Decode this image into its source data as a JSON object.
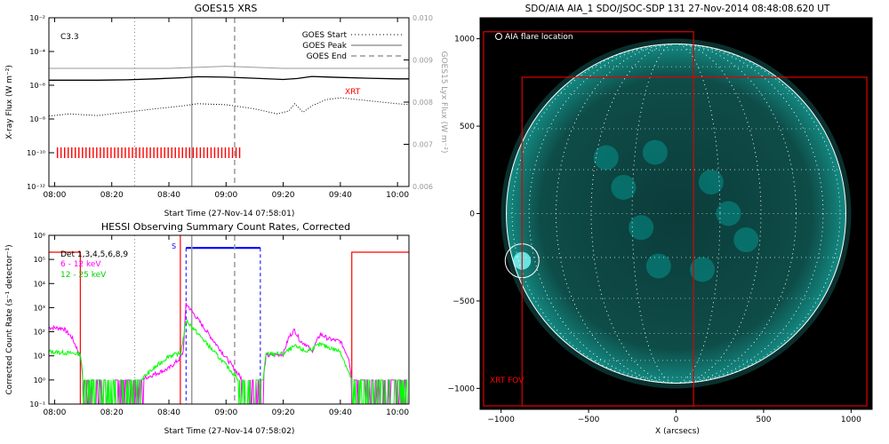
{
  "colors": {
    "frame": "#000000",
    "goes_low": "#000000",
    "goes_high": "#000000",
    "lya": "#999999",
    "xrt": "#ff0000",
    "hessi_6_12": "#ff00ff",
    "hessi_12_25": "#00ff00",
    "att_state": "#0000ff",
    "night": "#ff0000",
    "sun_cyan": "#00c0b8",
    "fov": "#e00000"
  },
  "chart_data": [
    {
      "type": "line",
      "title": "GOES15 XRS",
      "ylabel": "X-ray Flux (W m⁻²)",
      "y2label": "GOES15 Lyx Flux (W m⁻²)",
      "xlabel": "Start Time (27-Nov-14 07:58:01)",
      "xlim": [
        "07:58",
        "10:04"
      ],
      "xticks": [
        "08:00",
        "08:20",
        "08:40",
        "09:00",
        "09:20",
        "09:40",
        "10:00"
      ],
      "ylim": [
        1e-12,
        0.01
      ],
      "yscale": "log",
      "yticks": [
        "10⁻¹²",
        "10⁻¹⁰",
        "10⁻⁸",
        "10⁻⁶",
        "10⁻⁴",
        "10⁻²"
      ],
      "y2lim": [
        0.006,
        0.01
      ],
      "y2ticks": [
        "0.006",
        "0.007",
        "0.008",
        "0.009",
        "0.010"
      ],
      "flare_class": "C3.3",
      "legend": {
        "position": "top-right",
        "items": [
          "GOES Start",
          "GOES Peak",
          "GOES End"
        ]
      },
      "markers": {
        "start": "08:28",
        "peak": "08:48",
        "end": "09:03"
      },
      "xrt_label": "XRT",
      "xrt_coverage": [
        "08:01",
        "09:05"
      ],
      "series": [
        {
          "name": "",
          "x": [
            "07:58",
            "08:05",
            "08:15",
            "08:25",
            "08:35",
            "08:45",
            "08:50",
            "09:00",
            "09:10",
            "09:20",
            "09:25",
            "09:30",
            "09:35",
            "09:40",
            "09:50",
            "10:00",
            "10:04"
          ],
          "y": [
            2e-06,
            2e-06,
            2e-06,
            2.1e-06,
            2.4e-06,
            2.8e-06,
            3.2e-06,
            3e-06,
            2.6e-06,
            2.2e-06,
            2.5e-06,
            3.3e-06,
            3.1e-06,
            2.9e-06,
            2.6e-06,
            2.4e-06,
            2.4e-06
          ]
        },
        {
          "name": "",
          "x": [
            "07:58",
            "08:05",
            "08:15",
            "08:25",
            "08:35",
            "08:45",
            "08:50",
            "09:00",
            "09:10",
            "09:18",
            "09:22",
            "09:24",
            "09:27",
            "09:30",
            "09:35",
            "09:40",
            "09:50",
            "10:00",
            "10:04"
          ],
          "y": [
            1.5e-08,
            2e-08,
            1.6e-08,
            2.5e-08,
            4e-08,
            6e-08,
            8e-08,
            7e-08,
            4e-08,
            2e-08,
            3e-08,
            8e-08,
            2.5e-08,
            6e-08,
            1.4e-07,
            1.8e-07,
            1.2e-07,
            8e-08,
            7e-08
          ]
        },
        {
          "name": "",
          "axis": "right",
          "x": [
            "07:58",
            "08:20",
            "08:40",
            "09:00",
            "09:20",
            "09:40",
            "10:04"
          ],
          "y": [
            0.0088,
            0.0088,
            0.0088,
            0.00885,
            0.0088,
            0.0088,
            0.0088
          ]
        }
      ]
    },
    {
      "type": "line",
      "title": "HESSI Observing Summary Count Rates, Corrected",
      "ylabel": "Corrected Count Rate (s⁻¹ detector⁻¹)",
      "xlabel": "Start Time (27-Nov-14 07:58:02)",
      "xlim": [
        "07:58",
        "10:04"
      ],
      "xticks": [
        "08:00",
        "08:20",
        "08:40",
        "09:00",
        "09:20",
        "09:40",
        "10:00"
      ],
      "ylim": [
        0.1,
        1000000.0
      ],
      "yscale": "log",
      "yticks": [
        "10⁻¹",
        "10⁰",
        "10¹",
        "10²",
        "10³",
        "10⁴",
        "10⁵",
        "10⁶"
      ],
      "legend": {
        "position": "top-left",
        "items": [
          "Det 1,3,4,5,6,8,9",
          "6 - 12 keV",
          "12 - 25 keV"
        ]
      },
      "s_label": "S",
      "markers": {
        "start": "08:28",
        "peak": "08:48",
        "end": "09:03"
      },
      "night": [
        [
          "07:58",
          "08:09"
        ],
        [
          "09:44",
          "10:04"
        ]
      ],
      "saa": [
        "08:46",
        "09:12"
      ],
      "series": [
        {
          "name": "6 - 12 keV",
          "x": [
            "07:58",
            "08:03",
            "08:06",
            "08:09",
            "08:10",
            "08:30",
            "08:40",
            "08:44",
            "08:45",
            "08:46",
            "09:12",
            "09:14",
            "09:20",
            "09:22",
            "09:24",
            "09:26",
            "09:28",
            "09:30",
            "09:33",
            "09:36",
            "09:40",
            "09:43",
            "09:44",
            "10:04"
          ],
          "y": [
            150,
            140,
            60,
            10,
            1,
            1,
            3,
            8,
            15,
            1500,
            0.1,
            10,
            12,
            60,
            120,
            40,
            30,
            15,
            80,
            50,
            40,
            8,
            1,
            1
          ]
        },
        {
          "name": "12 - 25 keV",
          "x": [
            "07:58",
            "08:09",
            "08:10",
            "08:30",
            "08:40",
            "08:44",
            "08:45",
            "08:46",
            "09:12",
            "09:14",
            "09:20",
            "09:24",
            "09:28",
            "09:33",
            "09:40",
            "09:44",
            "10:04"
          ],
          "y": [
            15,
            12,
            1,
            1,
            10,
            12,
            50,
            300,
            0.1,
            12,
            12,
            25,
            15,
            30,
            15,
            1,
            1
          ]
        }
      ]
    },
    {
      "type": "image",
      "title": "SDO/AIA AIA_1 SDO/JSOC-SDP 131 27-Nov-2014 08:48:08.620 UT",
      "xlabel": "X (arcsecs)",
      "ylabel": "Y (arcsecs)",
      "xlim": [
        -1120,
        1120
      ],
      "ylim": [
        -1120,
        1120
      ],
      "xticks": [
        "−1000",
        "−500",
        "0",
        "500",
        "1000"
      ],
      "yticks": [
        "−1000",
        "−500",
        "0",
        "500",
        "1000"
      ],
      "solar_radius": 970,
      "legend_text": "AIA flare location",
      "flare_location": [
        -880,
        -270
      ],
      "xrt_fov_label": "XRT FOV",
      "fov_boxes": [
        [
          -1100,
          -1100,
          100,
          1040
        ],
        [
          -880,
          -1100,
          1090,
          780
        ]
      ]
    }
  ]
}
